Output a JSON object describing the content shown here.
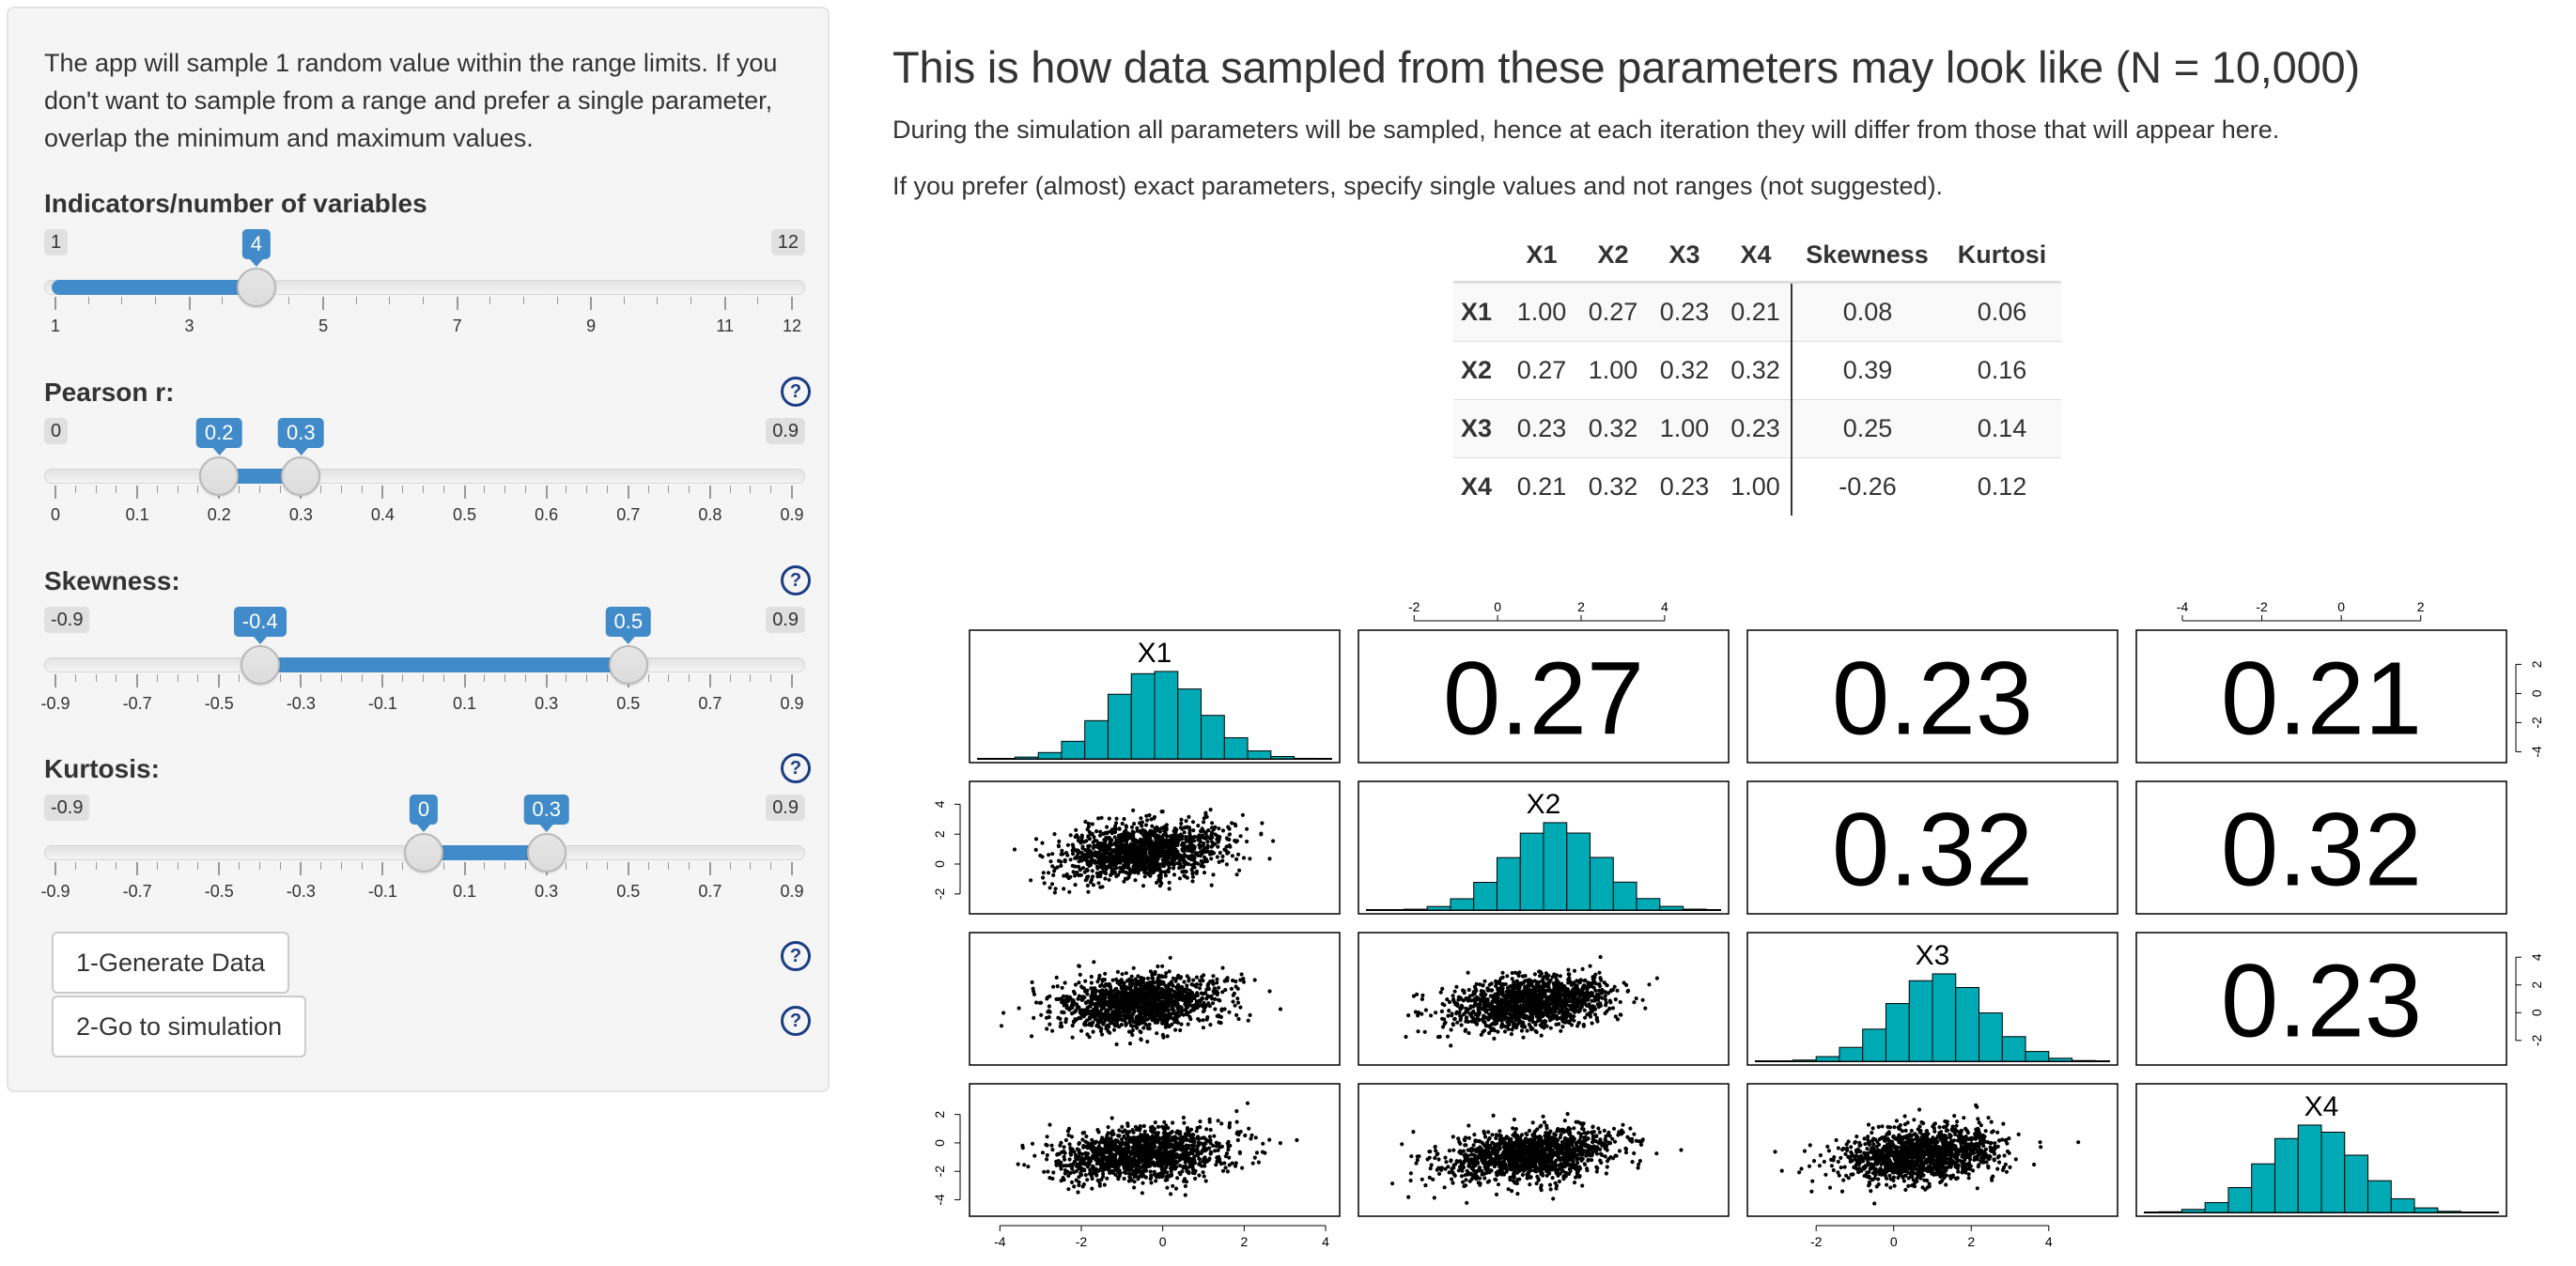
{
  "sidebar": {
    "intro_text": "The app will sample 1 random value within the range limits. If you don't want to sample from a range and prefer a single parameter, overlap the minimum and maximum values.",
    "help_glyph": "?",
    "sliders": [
      {
        "label": "Indicators/number of variables",
        "min_label": "1",
        "max_label": "12",
        "values": [
          4
        ],
        "value_labels": [
          "4"
        ],
        "range": [
          1,
          12
        ],
        "tick_labels": [
          "1",
          "3",
          "5",
          "7",
          "9",
          "11",
          "12"
        ],
        "tick_values": [
          1,
          3,
          5,
          7,
          9,
          11,
          12
        ],
        "has_help": false
      },
      {
        "label": "Pearson r:",
        "min_label": "0",
        "max_label": "0.9",
        "values": [
          0.2,
          0.3
        ],
        "value_labels": [
          "0.2",
          "0.3"
        ],
        "range": [
          0,
          0.9
        ],
        "tick_labels": [
          "0",
          "0.1",
          "0.2",
          "0.3",
          "0.4",
          "0.5",
          "0.6",
          "0.7",
          "0.8",
          "0.9"
        ],
        "tick_values": [
          0,
          0.1,
          0.2,
          0.3,
          0.4,
          0.5,
          0.6,
          0.7,
          0.8,
          0.9
        ],
        "has_help": true
      },
      {
        "label": "Skewness:",
        "min_label": "-0.9",
        "max_label": "0.9",
        "values": [
          -0.4,
          0.5
        ],
        "value_labels": [
          "-0.4",
          "0.5"
        ],
        "range": [
          -0.9,
          0.9
        ],
        "tick_labels": [
          "-0.9",
          "-0.7",
          "-0.5",
          "-0.3",
          "-0.1",
          "0.1",
          "0.3",
          "0.5",
          "0.7",
          "0.9"
        ],
        "tick_values": [
          -0.9,
          -0.7,
          -0.5,
          -0.3,
          -0.1,
          0.1,
          0.3,
          0.5,
          0.7,
          0.9
        ],
        "has_help": true
      },
      {
        "label": "Kurtosis:",
        "min_label": "-0.9",
        "max_label": "0.9",
        "values": [
          0,
          0.3
        ],
        "value_labels": [
          "0",
          "0.3"
        ],
        "range": [
          -0.9,
          0.9
        ],
        "tick_labels": [
          "-0.9",
          "-0.7",
          "-0.5",
          "-0.3",
          "-0.1",
          "0.1",
          "0.3",
          "0.5",
          "0.7",
          "0.9"
        ],
        "tick_values": [
          -0.9,
          -0.7,
          -0.5,
          -0.3,
          -0.1,
          0.1,
          0.3,
          0.5,
          0.7,
          0.9
        ],
        "has_help": true
      }
    ],
    "generate_button": "1-Generate Data",
    "simulate_button": "2-Go to simulation"
  },
  "main": {
    "title": "This is how data sampled from these parameters may look like (N = 10,000)",
    "note1": "During the simulation all parameters will be sampled, hence at each iteration they will differ from those that will appear here.",
    "note2": "If you prefer (almost) exact parameters, specify single values and not ranges (not suggested).",
    "table": {
      "headers": [
        "",
        "X1",
        "X2",
        "X3",
        "X4",
        "Skewness",
        "Kurtosi"
      ],
      "rows": [
        [
          "X1",
          "1.00",
          "0.27",
          "0.23",
          "0.21",
          "0.08",
          "0.06"
        ],
        [
          "X2",
          "0.27",
          "1.00",
          "0.32",
          "0.32",
          "0.39",
          "0.16"
        ],
        [
          "X3",
          "0.23",
          "0.32",
          "1.00",
          "0.23",
          "0.25",
          "0.14"
        ],
        [
          "X4",
          "0.21",
          "0.32",
          "0.23",
          "1.00",
          "-0.26",
          "0.12"
        ]
      ]
    }
  },
  "chart_data": {
    "type": "scatter",
    "variables": [
      "X1",
      "X2",
      "X3",
      "X4"
    ],
    "correlations": [
      [
        1.0,
        0.27,
        0.23,
        0.21
      ],
      [
        0.27,
        1.0,
        0.32,
        0.32
      ],
      [
        0.23,
        0.32,
        1.0,
        0.23
      ],
      [
        0.21,
        0.32,
        0.23,
        1.0
      ]
    ],
    "correlation_labels": [
      [
        "",
        "0.27",
        "0.23",
        "0.21"
      ],
      [
        "",
        "",
        "0.32",
        "0.32"
      ],
      [
        "",
        "",
        "",
        "0.23"
      ],
      [
        "",
        "",
        "",
        ""
      ]
    ],
    "skewness": [
      0.08,
      0.39,
      0.25,
      -0.26
    ],
    "n": 10000,
    "axis_ticks": {
      "X1": [
        -4,
        -2,
        0,
        2,
        4
      ],
      "X2": [
        -2,
        0,
        2,
        4
      ],
      "X3": [
        -2,
        0,
        2,
        4
      ],
      "X4": [
        -4,
        -2,
        0,
        2
      ]
    },
    "x_ranges": [
      [
        -4.2,
        3.8
      ],
      [
        -2.8,
        5.0
      ],
      [
        -3.2,
        5.2
      ],
      [
        -4.6,
        3.6
      ]
    ],
    "histogram_bins": [
      -3.5,
      -3.0,
      -2.5,
      -2.0,
      -1.5,
      -1.0,
      -0.5,
      0.0,
      0.5,
      1.0,
      1.5,
      2.0,
      2.5,
      3.0,
      3.5
    ],
    "histogram_color": "#00aab5",
    "point_color": "#000000"
  }
}
